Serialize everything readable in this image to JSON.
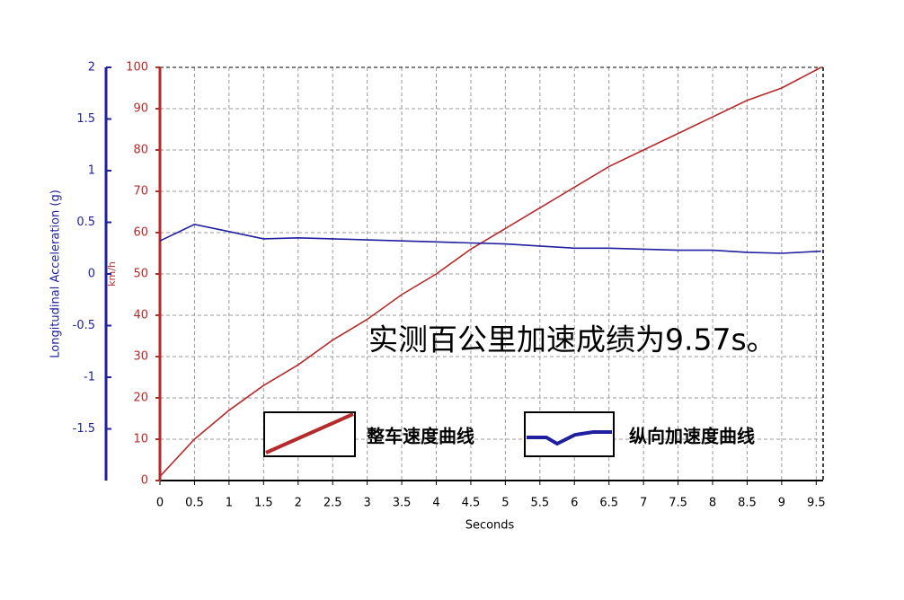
{
  "chart_data": {
    "type": "line",
    "annotation": "实测百公里加速成绩为9.57s。",
    "x_label": "Seconds",
    "y_label": "km/h",
    "y2_label": "Longitudinal Acceleration (g)",
    "x": [
      0,
      0.5,
      1,
      1.5,
      2,
      2.5,
      3,
      3.5,
      4,
      4.5,
      5,
      5.5,
      6,
      6.5,
      7,
      7.5,
      8,
      8.5,
      9,
      9.57
    ],
    "series": [
      {
        "name": "整车速度曲线",
        "color": "#b52a2a",
        "values": [
          1,
          10,
          17,
          23,
          28,
          34,
          39,
          45,
          50,
          56,
          61,
          66,
          71,
          76,
          80,
          84,
          88,
          92,
          95,
          100
        ]
      },
      {
        "name": "纵向加速度曲线",
        "color": "#1f1fa0",
        "axis": "y2",
        "values": [
          0.32,
          0.48,
          0.41,
          0.34,
          0.35,
          0.34,
          0.33,
          0.32,
          0.31,
          0.3,
          0.29,
          0.27,
          0.25,
          0.25,
          0.24,
          0.23,
          0.23,
          0.21,
          0.2,
          0.22
        ]
      }
    ],
    "xlim": [
      0,
      9.6
    ],
    "xticks": [
      0,
      0.5,
      1,
      1.5,
      2,
      2.5,
      3,
      3.5,
      4,
      4.5,
      5,
      5.5,
      6,
      6.5,
      7,
      7.5,
      8,
      8.5,
      9,
      9.5
    ],
    "ylim": [
      0,
      100
    ],
    "yticks": [
      0,
      10,
      20,
      30,
      40,
      50,
      60,
      70,
      80,
      90,
      100
    ],
    "y2lim": [
      -2,
      2
    ],
    "y2ticks": [
      -1.5,
      -1,
      -0.5,
      0,
      0.5,
      1,
      1.5,
      2
    ],
    "grid": true
  }
}
